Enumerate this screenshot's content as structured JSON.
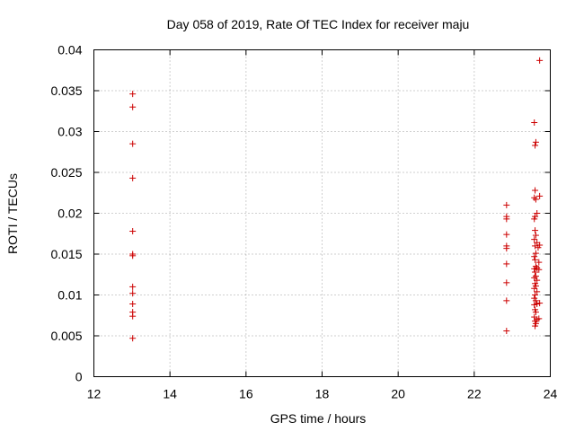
{
  "chart_data": {
    "type": "scatter",
    "title": "Day 058 of 2019, Rate Of TEC Index for receiver maju",
    "xlabel": "GPS time / hours",
    "ylabel": "ROTI / TECUs",
    "xlim": [
      12,
      24
    ],
    "ylim": [
      0,
      0.04
    ],
    "x_ticks": [
      12,
      14,
      16,
      18,
      20,
      22,
      24
    ],
    "y_ticks": [
      0,
      0.005,
      0.01,
      0.015,
      0.02,
      0.025,
      0.03,
      0.035,
      0.04
    ],
    "x_tick_labels": [
      "12",
      "14",
      "16",
      "18",
      "20",
      "22",
      "24"
    ],
    "y_tick_labels": [
      "0",
      "0.005",
      "0.01",
      "0.015",
      "0.02",
      "0.025",
      "0.03",
      "0.035",
      "0.04"
    ],
    "grid": true,
    "marker": "+",
    "color": "#cc0000",
    "series": [
      {
        "name": "maju",
        "points": [
          [
            13.02,
            0.0346
          ],
          [
            13.02,
            0.033
          ],
          [
            13.02,
            0.0285
          ],
          [
            13.02,
            0.0243
          ],
          [
            13.02,
            0.0178
          ],
          [
            13.02,
            0.015
          ],
          [
            13.02,
            0.0148
          ],
          [
            13.02,
            0.011
          ],
          [
            13.02,
            0.0102
          ],
          [
            13.02,
            0.0089
          ],
          [
            13.02,
            0.0079
          ],
          [
            13.02,
            0.0074
          ],
          [
            13.02,
            0.0047
          ],
          [
            22.85,
            0.021
          ],
          [
            22.85,
            0.0196
          ],
          [
            22.85,
            0.0193
          ],
          [
            22.85,
            0.0174
          ],
          [
            22.85,
            0.016
          ],
          [
            22.85,
            0.0157
          ],
          [
            22.85,
            0.0138
          ],
          [
            22.85,
            0.0115
          ],
          [
            22.85,
            0.0093
          ],
          [
            22.85,
            0.0056
          ],
          [
            23.72,
            0.0387
          ],
          [
            23.58,
            0.0311
          ],
          [
            23.62,
            0.0287
          ],
          [
            23.6,
            0.0283
          ],
          [
            23.6,
            0.0228
          ],
          [
            23.72,
            0.0221
          ],
          [
            23.58,
            0.0219
          ],
          [
            23.62,
            0.0217
          ],
          [
            23.65,
            0.02
          ],
          [
            23.6,
            0.0196
          ],
          [
            23.58,
            0.0193
          ],
          [
            23.6,
            0.0179
          ],
          [
            23.62,
            0.0173
          ],
          [
            23.58,
            0.0168
          ],
          [
            23.65,
            0.0164
          ],
          [
            23.72,
            0.0161
          ],
          [
            23.6,
            0.016
          ],
          [
            23.68,
            0.0158
          ],
          [
            23.62,
            0.0151
          ],
          [
            23.58,
            0.0147
          ],
          [
            23.6,
            0.0143
          ],
          [
            23.7,
            0.014
          ],
          [
            23.62,
            0.0135
          ],
          [
            23.65,
            0.0133
          ],
          [
            23.58,
            0.0132
          ],
          [
            23.7,
            0.0131
          ],
          [
            23.6,
            0.0128
          ],
          [
            23.62,
            0.0123
          ],
          [
            23.58,
            0.0121
          ],
          [
            23.65,
            0.0118
          ],
          [
            23.6,
            0.0114
          ],
          [
            23.62,
            0.0111
          ],
          [
            23.58,
            0.0108
          ],
          [
            23.65,
            0.0104
          ],
          [
            23.6,
            0.01
          ],
          [
            23.58,
            0.0096
          ],
          [
            23.62,
            0.0093
          ],
          [
            23.72,
            0.009
          ],
          [
            23.58,
            0.0088
          ],
          [
            23.65,
            0.0089
          ],
          [
            23.6,
            0.0082
          ],
          [
            23.62,
            0.0079
          ],
          [
            23.58,
            0.0073
          ],
          [
            23.7,
            0.0071
          ],
          [
            23.65,
            0.007
          ],
          [
            23.6,
            0.0068
          ],
          [
            23.62,
            0.0065
          ],
          [
            23.6,
            0.0062
          ]
        ]
      }
    ]
  }
}
